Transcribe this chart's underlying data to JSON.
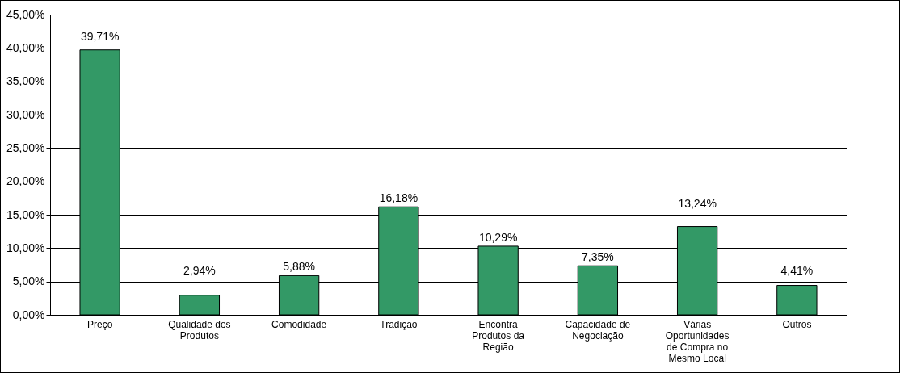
{
  "chart_data": {
    "type": "bar",
    "categories": [
      "Preço",
      "Qualidade dos Produtos",
      "Comodidade",
      "Tradição",
      "Encontra Produtos da Região",
      "Capacidade de Negociação",
      "Várias Oportunidades de Compra no Mesmo Local",
      "Outros"
    ],
    "values": [
      39.71,
      2.94,
      5.88,
      16.18,
      10.29,
      7.35,
      13.24,
      4.41
    ],
    "value_labels": [
      "39,71%",
      "2,94%",
      "5,88%",
      "16,18%",
      "10,29%",
      "7,35%",
      "13,24%",
      "4,41%"
    ],
    "color": "#339966",
    "ylim": [
      0,
      45
    ],
    "yticks": [
      {
        "value": 0,
        "label": "0,00%"
      },
      {
        "value": 5,
        "label": "5,00%"
      },
      {
        "value": 10,
        "label": "10,00%"
      },
      {
        "value": 15,
        "label": "15,00%"
      },
      {
        "value": 20,
        "label": "20,00%"
      },
      {
        "value": 25,
        "label": "25,00%"
      },
      {
        "value": 30,
        "label": "30,00%"
      },
      {
        "value": 35,
        "label": "35,00%"
      },
      {
        "value": 40,
        "label": "40,00%"
      },
      {
        "value": 45,
        "label": "45,00%"
      }
    ],
    "grid": "y"
  }
}
